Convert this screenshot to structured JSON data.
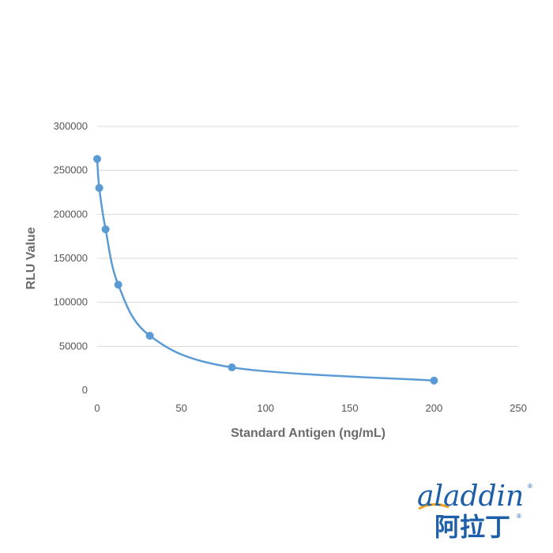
{
  "chart_data": {
    "type": "scatter",
    "title": "",
    "xlabel": "Standard Antigen (ng/mL)",
    "ylabel": "RLU Value",
    "xlim": [
      0,
      250
    ],
    "ylim": [
      0,
      300000
    ],
    "x_ticks": [
      "0",
      "50",
      "100",
      "150",
      "200",
      "250"
    ],
    "y_ticks": [
      "0",
      "50000",
      "100000",
      "150000",
      "200000",
      "250000",
      "300000"
    ],
    "grid": true,
    "legend": "none",
    "series": [
      {
        "x": [
          0,
          1.25,
          5,
          12.5,
          31.25,
          80,
          200
        ],
        "y": [
          263000,
          230000,
          183000,
          120000,
          62000,
          26000,
          11000
        ],
        "smooth_line": true
      }
    ],
    "color": "#5b9bd5",
    "gridline_color": "#d9d9d9"
  },
  "logo": {
    "word": "aladdin",
    "cn": "阿拉丁",
    "reg": "®",
    "brand_color": "#1c5ea8",
    "accent_color": "#f2a21a"
  }
}
